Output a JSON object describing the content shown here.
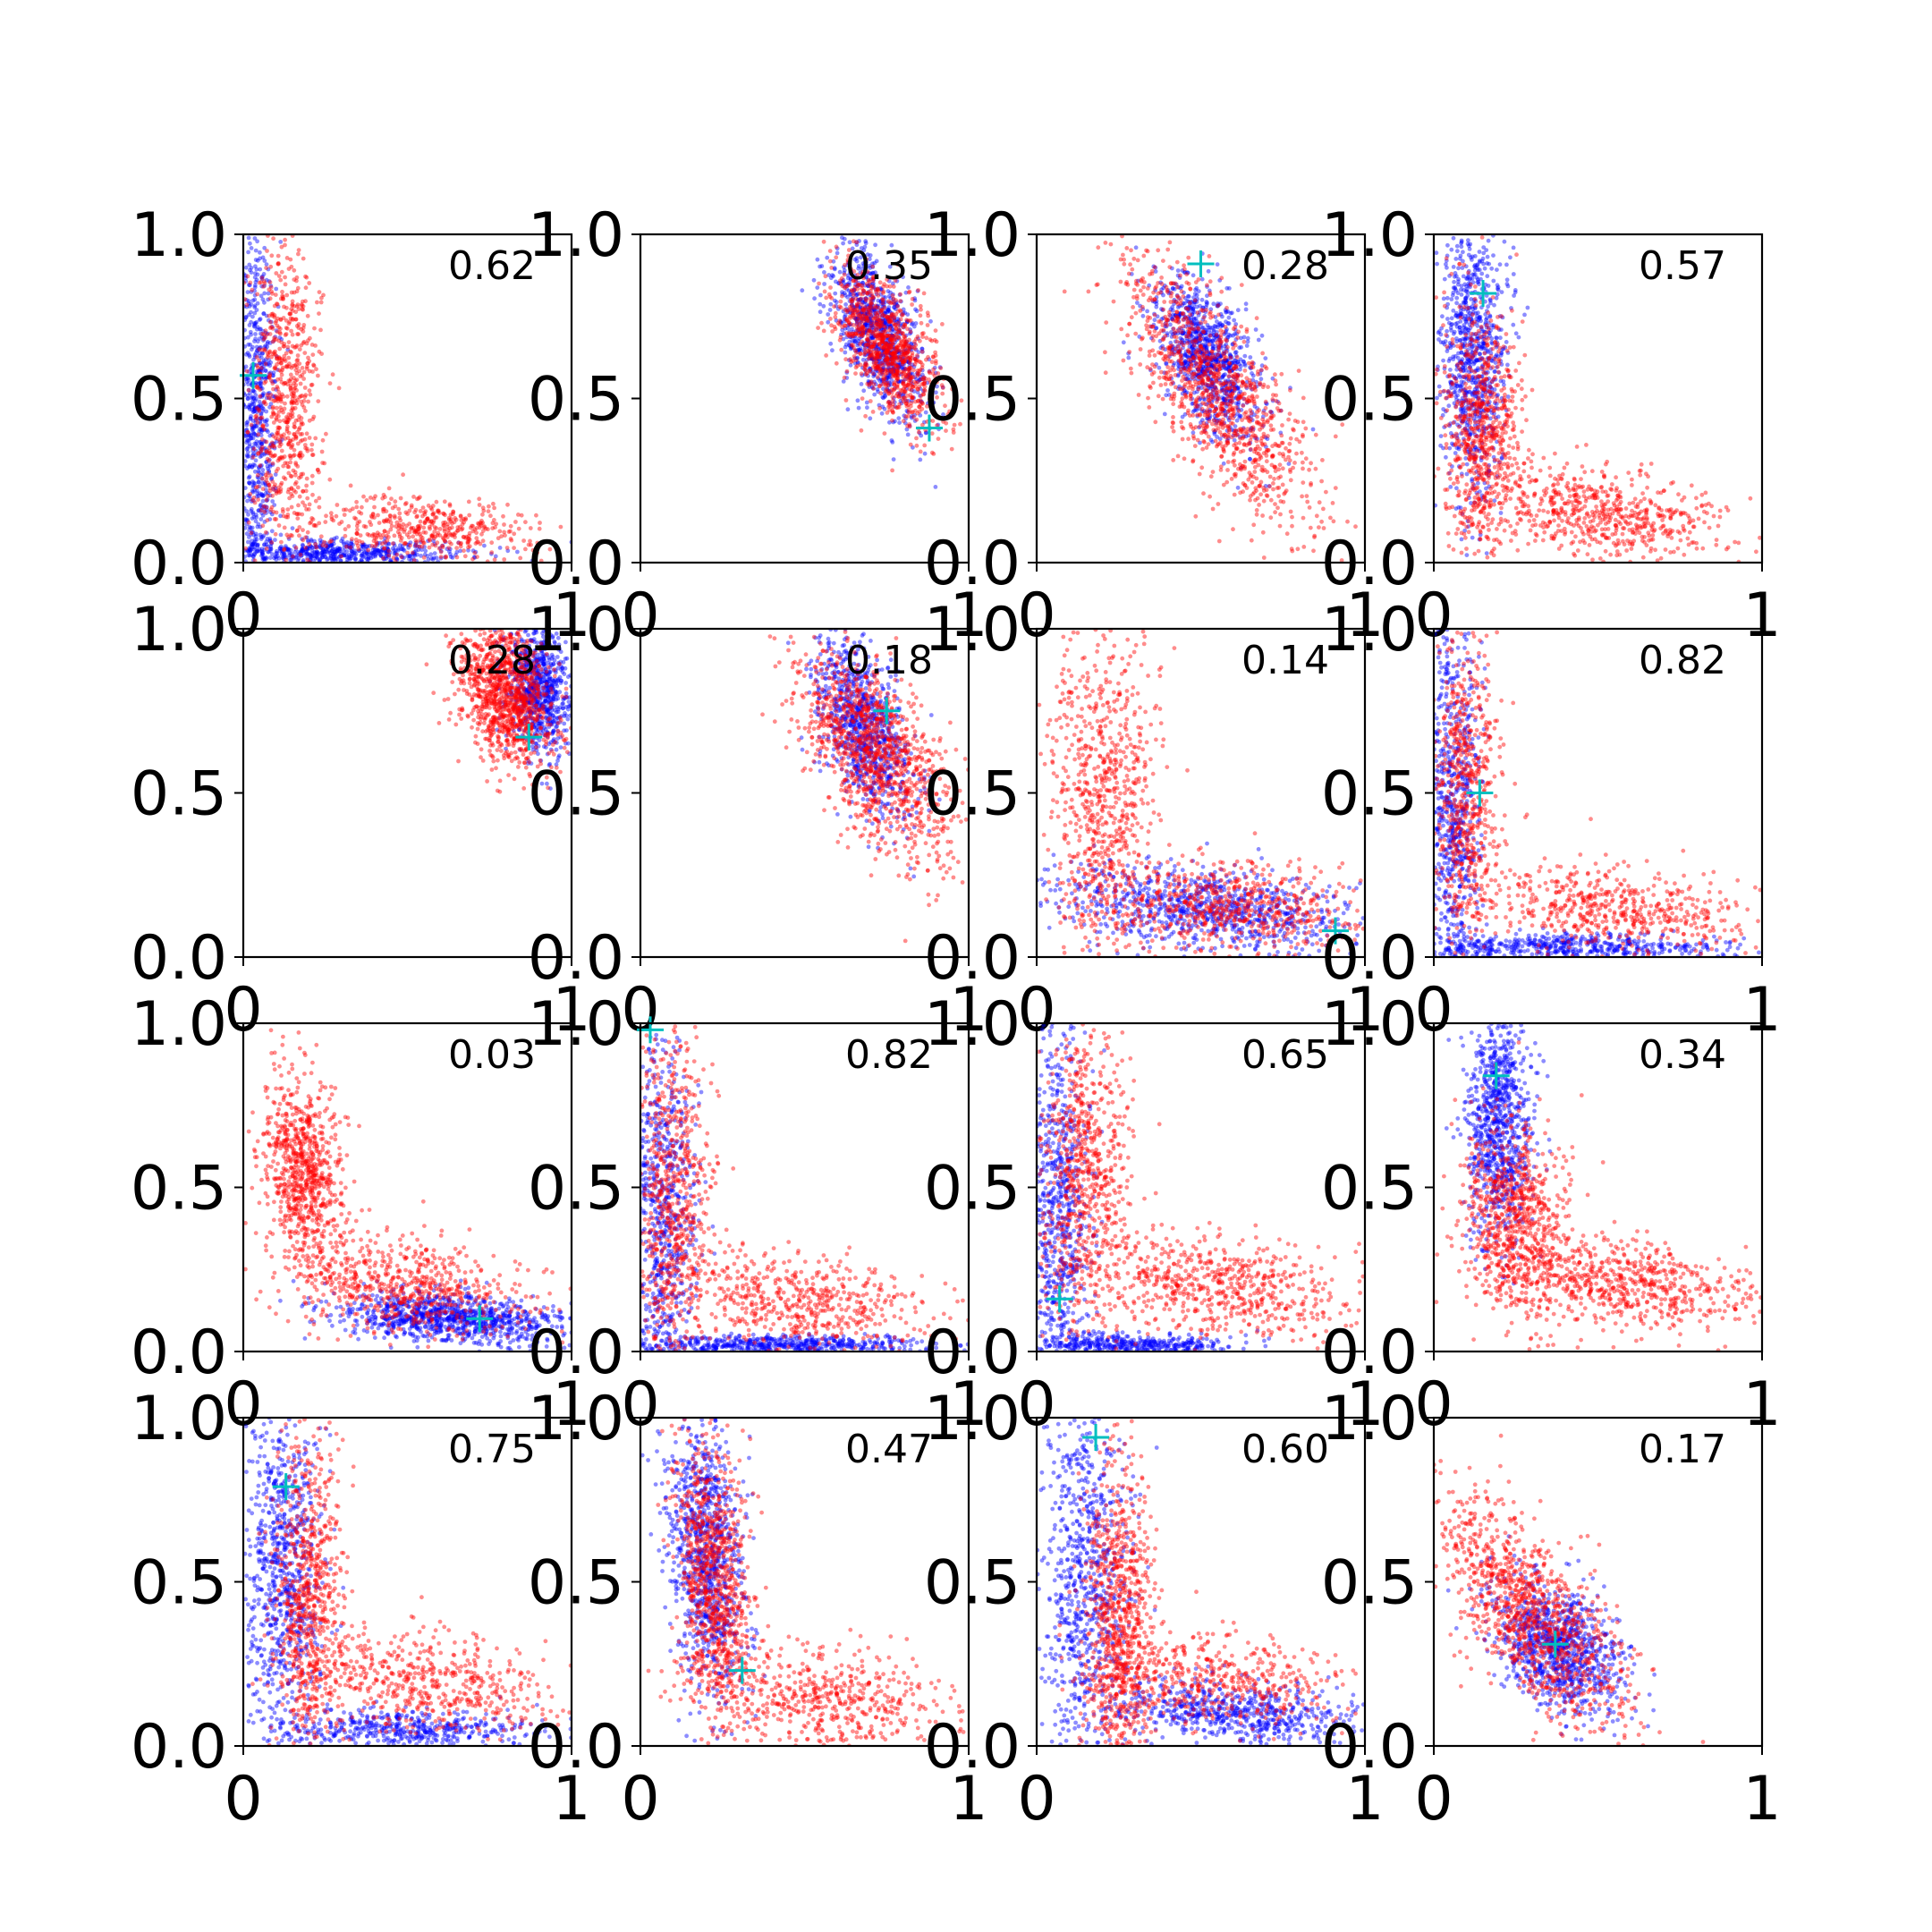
{
  "figure": {
    "layout": {
      "rows": 4,
      "cols": 4
    },
    "colors": {
      "series_a": "#0000ff",
      "series_b": "#ff0000",
      "marker": "#00bfbf",
      "axes": "#000000"
    }
  },
  "chart_data": [
    {
      "type": "scatter",
      "annotation": "0.62",
      "xlim": [
        0,
        1
      ],
      "ylim": [
        0,
        1
      ],
      "xticks": [
        "0",
        "1"
      ],
      "yticks": [
        "0.0",
        "0.5",
        "1.0"
      ],
      "marker": {
        "x": 0.03,
        "y": 0.57
      },
      "series": [
        {
          "color": "blue",
          "clusters": [
            [
              0.04,
              0.45,
              0.03,
              0.3,
              0,
              45
            ],
            [
              0.25,
              0.03,
              0.22,
              0.02,
              0,
              40
            ]
          ]
        },
        {
          "color": "red",
          "clusters": [
            [
              0.13,
              0.5,
              0.05,
              0.25,
              0,
              45
            ],
            [
              0.55,
              0.1,
              0.18,
              0.05,
              -0.2,
              30
            ]
          ]
        }
      ]
    },
    {
      "type": "scatter",
      "annotation": "0.35",
      "xlim": [
        0,
        1
      ],
      "ylim": [
        0,
        1
      ],
      "xticks": [
        "0",
        "1"
      ],
      "yticks": [
        "0.0",
        "0.5",
        "1.0"
      ],
      "marker": {
        "x": 0.88,
        "y": 0.41
      },
      "series": [
        {
          "color": "blue",
          "clusters": [
            [
              0.72,
              0.7,
              0.07,
              0.13,
              -0.6,
              60
            ]
          ]
        },
        {
          "color": "red",
          "clusters": [
            [
              0.75,
              0.66,
              0.08,
              0.12,
              -0.6,
              60
            ]
          ]
        }
      ]
    },
    {
      "type": "scatter",
      "annotation": "0.28",
      "xlim": [
        0,
        1
      ],
      "ylim": [
        0,
        1
      ],
      "xticks": [
        "0",
        "1"
      ],
      "yticks": [
        "0.0",
        "0.5",
        "1.0"
      ],
      "marker": {
        "x": 0.5,
        "y": 0.91
      },
      "series": [
        {
          "color": "blue",
          "clusters": [
            [
              0.52,
              0.62,
              0.08,
              0.12,
              -0.5,
              60
            ]
          ]
        },
        {
          "color": "red",
          "clusters": [
            [
              0.55,
              0.52,
              0.14,
              0.2,
              -0.75,
              70
            ]
          ]
        }
      ]
    },
    {
      "type": "scatter",
      "annotation": "0.57",
      "xlim": [
        0,
        1
      ],
      "ylim": [
        0,
        1
      ],
      "xticks": [
        "0",
        "1"
      ],
      "yticks": [
        "0.0",
        "0.5",
        "1.0"
      ],
      "marker": {
        "x": 0.15,
        "y": 0.82
      },
      "series": [
        {
          "color": "blue",
          "clusters": [
            [
              0.12,
              0.65,
              0.05,
              0.22,
              0,
              55
            ]
          ]
        },
        {
          "color": "red",
          "clusters": [
            [
              0.15,
              0.4,
              0.06,
              0.2,
              0,
              45
            ],
            [
              0.5,
              0.15,
              0.2,
              0.07,
              -0.3,
              40
            ]
          ]
        }
      ]
    },
    {
      "type": "scatter",
      "annotation": "0.28",
      "xlim": [
        0,
        1
      ],
      "ylim": [
        0,
        1
      ],
      "xticks": [
        "0",
        "1"
      ],
      "yticks": [
        "0.0",
        "0.5",
        "1.0"
      ],
      "marker": {
        "x": 0.87,
        "y": 0.67
      },
      "series": [
        {
          "color": "blue",
          "clusters": [
            [
              0.9,
              0.82,
              0.05,
              0.1,
              -0.2,
              50
            ]
          ]
        },
        {
          "color": "red",
          "clusters": [
            [
              0.8,
              0.8,
              0.07,
              0.11,
              -0.3,
              70
            ]
          ]
        }
      ]
    },
    {
      "type": "scatter",
      "annotation": "0.18",
      "xlim": [
        0,
        1
      ],
      "ylim": [
        0,
        1
      ],
      "xticks": [
        "0",
        "1"
      ],
      "yticks": [
        "0.0",
        "0.5",
        "1.0"
      ],
      "marker": {
        "x": 0.75,
        "y": 0.75
      },
      "series": [
        {
          "color": "blue",
          "clusters": [
            [
              0.68,
              0.7,
              0.07,
              0.13,
              -0.5,
              55
            ]
          ]
        },
        {
          "color": "red",
          "clusters": [
            [
              0.72,
              0.62,
              0.12,
              0.16,
              -0.6,
              70
            ]
          ]
        }
      ]
    },
    {
      "type": "scatter",
      "annotation": "0.14",
      "xlim": [
        0,
        1
      ],
      "ylim": [
        0,
        1
      ],
      "xticks": [
        "0",
        "1"
      ],
      "yticks": [
        "0.0",
        "0.5",
        "1.0"
      ],
      "marker": {
        "x": 0.91,
        "y": 0.08
      },
      "series": [
        {
          "color": "blue",
          "clusters": [
            [
              0.5,
              0.15,
              0.25,
              0.07,
              -0.4,
              55
            ]
          ]
        },
        {
          "color": "red",
          "clusters": [
            [
              0.2,
              0.5,
              0.08,
              0.25,
              0,
              45
            ],
            [
              0.6,
              0.15,
              0.2,
              0.07,
              -0.3,
              40
            ]
          ]
        }
      ]
    },
    {
      "type": "scatter",
      "annotation": "0.82",
      "xlim": [
        0,
        1
      ],
      "ylim": [
        0,
        1
      ],
      "xticks": [
        "0",
        "1"
      ],
      "yticks": [
        "0.0",
        "0.5",
        "1.0"
      ],
      "marker": {
        "x": 0.14,
        "y": 0.5
      },
      "series": [
        {
          "color": "blue",
          "clusters": [
            [
              0.06,
              0.45,
              0.04,
              0.3,
              0,
              45
            ],
            [
              0.4,
              0.03,
              0.25,
              0.02,
              0,
              35
            ]
          ]
        },
        {
          "color": "red",
          "clusters": [
            [
              0.1,
              0.5,
              0.05,
              0.25,
              0,
              40
            ],
            [
              0.55,
              0.15,
              0.2,
              0.07,
              -0.3,
              35
            ]
          ]
        }
      ]
    },
    {
      "type": "scatter",
      "annotation": "0.03",
      "xlim": [
        0,
        1
      ],
      "ylim": [
        0,
        1
      ],
      "xticks": [
        "0",
        "1"
      ],
      "yticks": [
        "0.0",
        "0.5",
        "1.0"
      ],
      "marker": {
        "x": 0.72,
        "y": 0.1
      },
      "series": [
        {
          "color": "blue",
          "clusters": [
            [
              0.65,
              0.1,
              0.18,
              0.04,
              -0.3,
              60
            ]
          ]
        },
        {
          "color": "red",
          "clusters": [
            [
              0.18,
              0.55,
              0.06,
              0.15,
              -0.2,
              50
            ],
            [
              0.5,
              0.2,
              0.2,
              0.08,
              -0.4,
              40
            ]
          ]
        }
      ]
    },
    {
      "type": "scatter",
      "annotation": "0.82",
      "xlim": [
        0,
        1
      ],
      "ylim": [
        0,
        1
      ],
      "xticks": [
        "0",
        "1"
      ],
      "yticks": [
        "0.0",
        "0.5",
        "1.0"
      ],
      "marker": {
        "x": 0.03,
        "y": 0.98
      },
      "series": [
        {
          "color": "blue",
          "clusters": [
            [
              0.07,
              0.4,
              0.05,
              0.3,
              0,
              45
            ],
            [
              0.45,
              0.02,
              0.25,
              0.015,
              0,
              35
            ]
          ]
        },
        {
          "color": "red",
          "clusters": [
            [
              0.1,
              0.45,
              0.06,
              0.28,
              0,
              45
            ],
            [
              0.5,
              0.15,
              0.2,
              0.07,
              -0.3,
              35
            ]
          ]
        }
      ]
    },
    {
      "type": "scatter",
      "annotation": "0.65",
      "xlim": [
        0,
        1
      ],
      "ylim": [
        0,
        1
      ],
      "xticks": [
        "0",
        "1"
      ],
      "yticks": [
        "0.0",
        "0.5",
        "1.0"
      ],
      "marker": {
        "x": 0.07,
        "y": 0.16
      },
      "series": [
        {
          "color": "blue",
          "clusters": [
            [
              0.06,
              0.4,
              0.05,
              0.3,
              0,
              50
            ],
            [
              0.3,
              0.02,
              0.15,
              0.015,
              0,
              25
            ]
          ]
        },
        {
          "color": "red",
          "clusters": [
            [
              0.15,
              0.55,
              0.07,
              0.25,
              0,
              45
            ],
            [
              0.55,
              0.2,
              0.2,
              0.08,
              -0.3,
              40
            ]
          ]
        }
      ]
    },
    {
      "type": "scatter",
      "annotation": "0.34",
      "xlim": [
        0,
        1
      ],
      "ylim": [
        0,
        1
      ],
      "xticks": [
        "0",
        "1"
      ],
      "yticks": [
        "0.0",
        "0.5",
        "1.0"
      ],
      "marker": {
        "x": 0.19,
        "y": 0.84
      },
      "series": [
        {
          "color": "blue",
          "clusters": [
            [
              0.2,
              0.7,
              0.05,
              0.18,
              0,
              55
            ]
          ]
        },
        {
          "color": "red",
          "clusters": [
            [
              0.25,
              0.4,
              0.08,
              0.15,
              -0.2,
              50
            ],
            [
              0.6,
              0.2,
              0.2,
              0.07,
              -0.3,
              40
            ]
          ]
        }
      ]
    },
    {
      "type": "scatter",
      "annotation": "0.75",
      "xlim": [
        0,
        1
      ],
      "ylim": [
        0,
        1
      ],
      "xticks": [
        "0",
        "1"
      ],
      "yticks": [
        "0.0",
        "0.5",
        "1.0"
      ],
      "marker": {
        "x": 0.13,
        "y": 0.79
      },
      "series": [
        {
          "color": "blue",
          "clusters": [
            [
              0.12,
              0.55,
              0.06,
              0.25,
              0,
              50
            ],
            [
              0.5,
              0.05,
              0.2,
              0.03,
              0,
              30
            ]
          ]
        },
        {
          "color": "red",
          "clusters": [
            [
              0.2,
              0.45,
              0.05,
              0.25,
              0,
              45
            ],
            [
              0.55,
              0.2,
              0.2,
              0.08,
              -0.3,
              35
            ]
          ]
        }
      ]
    },
    {
      "type": "scatter",
      "annotation": "0.47",
      "xlim": [
        0,
        1
      ],
      "ylim": [
        0,
        1
      ],
      "xticks": [
        "0",
        "1"
      ],
      "yticks": [
        "0.0",
        "0.5",
        "1.0"
      ],
      "marker": {
        "x": 0.31,
        "y": 0.23
      },
      "series": [
        {
          "color": "blue",
          "clusters": [
            [
              0.2,
              0.6,
              0.06,
              0.22,
              -0.3,
              60
            ]
          ]
        },
        {
          "color": "red",
          "clusters": [
            [
              0.22,
              0.5,
              0.06,
              0.22,
              -0.3,
              55
            ],
            [
              0.55,
              0.15,
              0.2,
              0.08,
              -0.3,
              35
            ]
          ]
        }
      ]
    },
    {
      "type": "scatter",
      "annotation": "0.60",
      "xlim": [
        0,
        1
      ],
      "ylim": [
        0,
        1
      ],
      "xticks": [
        "0",
        "1"
      ],
      "yticks": [
        "0.0",
        "0.5",
        "1.0"
      ],
      "marker": {
        "x": 0.18,
        "y": 0.94
      },
      "series": [
        {
          "color": "blue",
          "clusters": [
            [
              0.15,
              0.5,
              0.07,
              0.3,
              0,
              50
            ],
            [
              0.6,
              0.1,
              0.2,
              0.05,
              -0.3,
              40
            ]
          ]
        },
        {
          "color": "red",
          "clusters": [
            [
              0.25,
              0.35,
              0.05,
              0.25,
              0,
              55
            ],
            [
              0.55,
              0.2,
              0.2,
              0.08,
              -0.3,
              30
            ]
          ]
        }
      ]
    },
    {
      "type": "scatter",
      "annotation": "0.17",
      "xlim": [
        0,
        1
      ],
      "ylim": [
        0,
        1
      ],
      "xticks": [
        "0",
        "1"
      ],
      "yticks": [
        "0.0",
        "0.5",
        "1.0"
      ],
      "marker": {
        "x": 0.37,
        "y": 0.31
      },
      "series": [
        {
          "color": "blue",
          "clusters": [
            [
              0.38,
              0.3,
              0.1,
              0.1,
              -0.4,
              60
            ]
          ]
        },
        {
          "color": "red",
          "clusters": [
            [
              0.3,
              0.4,
              0.15,
              0.18,
              -0.7,
              70
            ]
          ]
        }
      ]
    }
  ]
}
